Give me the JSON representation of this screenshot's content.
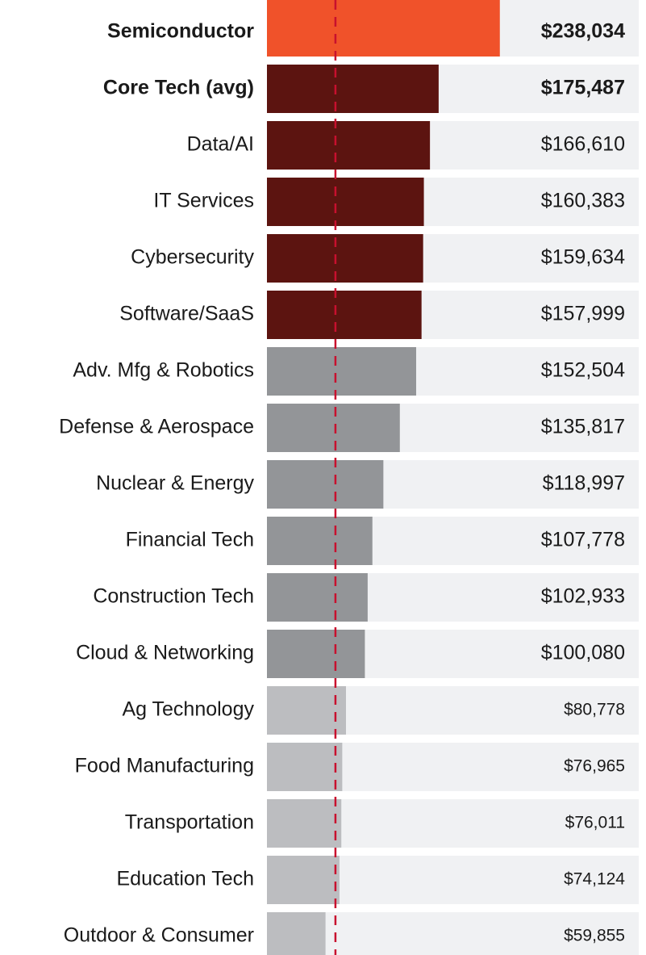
{
  "chart_data": {
    "type": "bar",
    "orientation": "horizontal",
    "categories": [
      "Semiconductor",
      "Core Tech (avg)",
      "Data/AI",
      "IT Services",
      "Cybersecurity",
      "Software/SaaS",
      "Adv. Mfg & Robotics",
      "Defense & Aerospace",
      "Nuclear & Energy",
      "Financial Tech",
      "Construction Tech",
      "Cloud & Networking",
      "Ag Technology",
      "Food Manufacturing",
      "Transportation",
      "Education Tech",
      "Outdoor & Consumer"
    ],
    "values": [
      238034,
      175487,
      166610,
      160383,
      159634,
      157999,
      152504,
      135817,
      118997,
      107778,
      102933,
      100080,
      80778,
      76965,
      76011,
      74124,
      59855
    ],
    "value_labels": [
      "$238,034",
      "$175,487",
      "$166,610",
      "$160,383",
      "$159,634",
      "$157,999",
      "$152,504",
      "$135,817",
      "$118,997",
      "$107,778",
      "$102,933",
      "$100,080",
      "$80,778",
      "$76,965",
      "$76,011",
      "$74,124",
      "$59,855"
    ],
    "colors": [
      "#f0522a",
      "#5c1410",
      "#5c1410",
      "#5c1410",
      "#5c1410",
      "#5c1410",
      "#939598",
      "#939598",
      "#939598",
      "#939598",
      "#939598",
      "#939598",
      "#bcbdc0",
      "#bcbdc0",
      "#bcbdc0",
      "#bcbdc0",
      "#bcbdc0"
    ],
    "emphasis": [
      "strong",
      "strong",
      "normal",
      "normal",
      "normal",
      "normal",
      "normal",
      "normal",
      "normal",
      "normal",
      "normal",
      "normal",
      "minor",
      "minor",
      "minor",
      "minor",
      "minor"
    ],
    "track_color": "#f0f1f3",
    "reference_line": {
      "value": 70000,
      "color": "#c8102e"
    },
    "xlim": [
      0,
      380000
    ]
  }
}
